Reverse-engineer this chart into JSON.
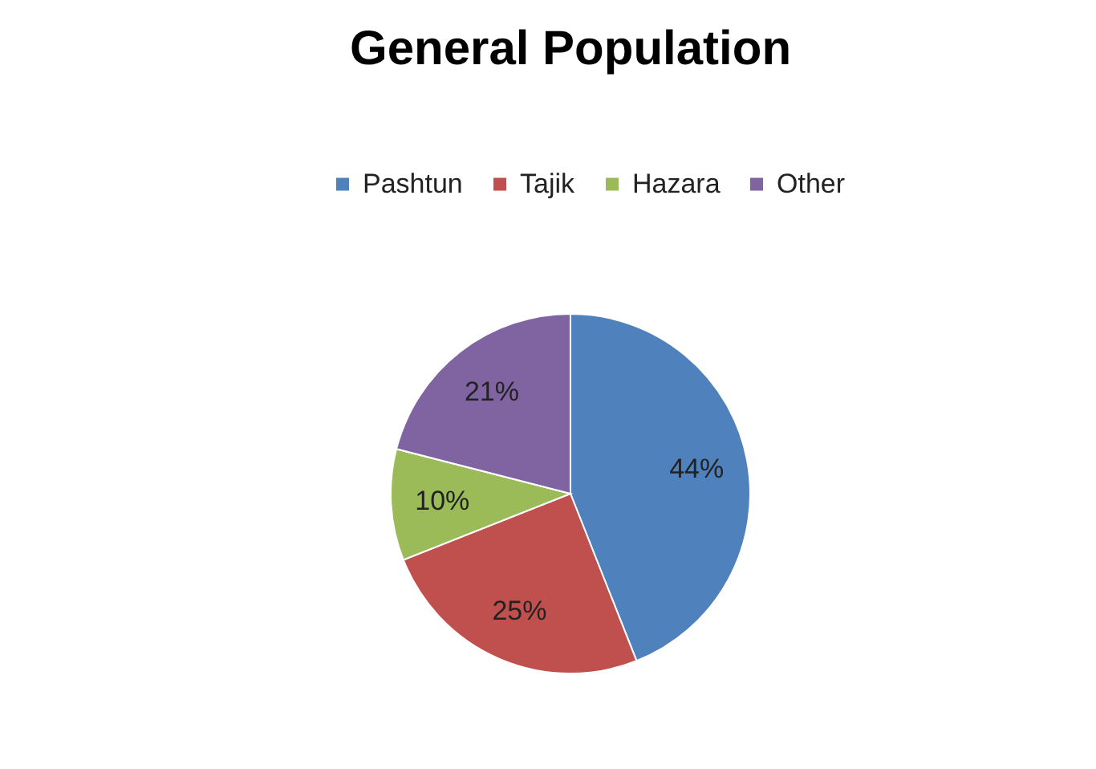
{
  "chart_data": {
    "type": "pie",
    "title": "General Population",
    "categories": [
      "Pashtun",
      "Tajik",
      "Hazara",
      "Other"
    ],
    "values": [
      44,
      25,
      10,
      21
    ],
    "colors": [
      "#4f81bd",
      "#c0504d",
      "#9bbb59",
      "#8064a2"
    ],
    "value_labels": [
      "44%",
      "25%",
      "10%",
      "21%"
    ],
    "legend": "top"
  }
}
